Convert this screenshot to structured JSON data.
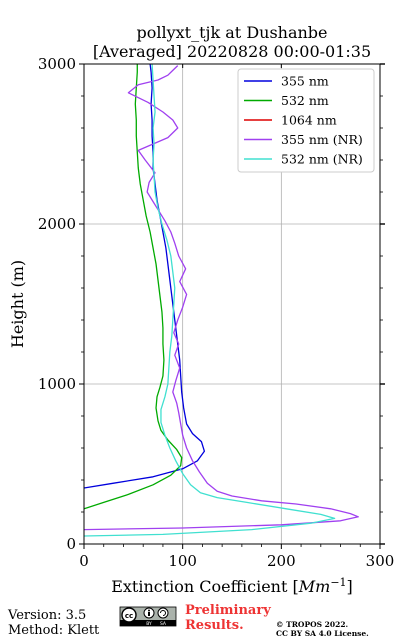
{
  "chart_data": {
    "type": "line",
    "title_lines": [
      "pollyxt_tjk at Dushanbe",
      "[Averaged] 20220828 00:00-01:35"
    ],
    "xlabel": "Extinction Coefficient",
    "xlabel_unit": "Mm",
    "xlabel_unit_exp": "−1",
    "ylabel": "Height (m)",
    "xlim": [
      0,
      300
    ],
    "ylim": [
      0,
      3000
    ],
    "xticks": [
      0,
      100,
      200,
      300
    ],
    "xtick_labels": [
      "0",
      "100",
      "200",
      "300"
    ],
    "yticks": [
      0,
      1000,
      2000,
      3000
    ],
    "ytick_labels": [
      "0",
      "1000",
      "2000",
      "3000"
    ],
    "grid": true,
    "legend_position": "top-right",
    "series": [
      {
        "name": "355 nm",
        "color": "#0000dd",
        "points": [
          [
            0,
            350
          ],
          [
            30,
            380
          ],
          [
            70,
            420
          ],
          [
            100,
            470
          ],
          [
            115,
            520
          ],
          [
            122,
            580
          ],
          [
            119,
            640
          ],
          [
            110,
            690
          ],
          [
            104,
            750
          ],
          [
            101,
            850
          ],
          [
            99,
            950
          ],
          [
            98,
            1050
          ],
          [
            97,
            1150
          ],
          [
            95,
            1250
          ],
          [
            93,
            1350
          ],
          [
            91,
            1450
          ],
          [
            89,
            1550
          ],
          [
            87,
            1650
          ],
          [
            85,
            1750
          ],
          [
            83,
            1850
          ],
          [
            80,
            1950
          ],
          [
            77,
            2050
          ],
          [
            74,
            2150
          ],
          [
            72,
            2250
          ],
          [
            70,
            2350
          ],
          [
            70,
            2450
          ],
          [
            69,
            2550
          ],
          [
            69,
            2650
          ],
          [
            68,
            2750
          ],
          [
            69,
            2850
          ],
          [
            68,
            2950
          ],
          [
            67,
            3000
          ]
        ]
      },
      {
        "name": "532 nm",
        "color": "#00aa00",
        "points": [
          [
            0,
            220
          ],
          [
            20,
            260
          ],
          [
            45,
            310
          ],
          [
            70,
            370
          ],
          [
            88,
            430
          ],
          [
            98,
            490
          ],
          [
            99,
            540
          ],
          [
            94,
            590
          ],
          [
            85,
            650
          ],
          [
            78,
            710
          ],
          [
            75,
            770
          ],
          [
            73,
            850
          ],
          [
            74,
            920
          ],
          [
            77,
            980
          ],
          [
            80,
            1050
          ],
          [
            81,
            1150
          ],
          [
            80,
            1250
          ],
          [
            80,
            1350
          ],
          [
            79,
            1450
          ],
          [
            77,
            1550
          ],
          [
            75,
            1650
          ],
          [
            73,
            1750
          ],
          [
            70,
            1850
          ],
          [
            67,
            1950
          ],
          [
            63,
            2050
          ],
          [
            60,
            2150
          ],
          [
            57,
            2250
          ],
          [
            55,
            2350
          ],
          [
            54,
            2450
          ],
          [
            53,
            2550
          ],
          [
            53,
            2650
          ],
          [
            52,
            2750
          ],
          [
            53,
            2850
          ],
          [
            54,
            2950
          ],
          [
            54,
            3000
          ]
        ]
      },
      {
        "name": "1064 nm",
        "color": "#dd0000",
        "points": []
      },
      {
        "name": "355 nm (NR)",
        "color": "#a040f0",
        "points": [
          [
            0,
            90
          ],
          [
            100,
            100
          ],
          [
            200,
            120
          ],
          [
            260,
            145
          ],
          [
            278,
            170
          ],
          [
            270,
            190
          ],
          [
            250,
            220
          ],
          [
            215,
            250
          ],
          [
            180,
            270
          ],
          [
            150,
            300
          ],
          [
            135,
            330
          ],
          [
            125,
            380
          ],
          [
            117,
            450
          ],
          [
            110,
            520
          ],
          [
            104,
            600
          ],
          [
            100,
            680
          ],
          [
            98,
            750
          ],
          [
            96,
            820
          ],
          [
            94,
            880
          ],
          [
            90,
            950
          ],
          [
            93,
            1020
          ],
          [
            97,
            1100
          ],
          [
            92,
            1180
          ],
          [
            96,
            1250
          ],
          [
            91,
            1320
          ],
          [
            95,
            1400
          ],
          [
            100,
            1480
          ],
          [
            104,
            1560
          ],
          [
            97,
            1640
          ],
          [
            103,
            1720
          ],
          [
            96,
            1800
          ],
          [
            92,
            1880
          ],
          [
            88,
            1950
          ],
          [
            82,
            2020
          ],
          [
            76,
            2080
          ],
          [
            70,
            2140
          ],
          [
            64,
            2200
          ],
          [
            66,
            2260
          ],
          [
            72,
            2320
          ],
          [
            62,
            2400
          ],
          [
            55,
            2460
          ],
          [
            70,
            2500
          ],
          [
            85,
            2540
          ],
          [
            95,
            2600
          ],
          [
            90,
            2650
          ],
          [
            80,
            2700
          ],
          [
            65,
            2760
          ],
          [
            45,
            2820
          ],
          [
            55,
            2870
          ],
          [
            75,
            2900
          ],
          [
            85,
            2930
          ],
          [
            90,
            2960
          ],
          [
            95,
            2990
          ]
        ]
      },
      {
        "name": "532 nm (NR)",
        "color": "#40e0d0",
        "points": [
          [
            0,
            50
          ],
          [
            80,
            60
          ],
          [
            170,
            90
          ],
          [
            230,
            130
          ],
          [
            254,
            160
          ],
          [
            240,
            185
          ],
          [
            205,
            220
          ],
          [
            165,
            260
          ],
          [
            135,
            290
          ],
          [
            118,
            320
          ],
          [
            108,
            370
          ],
          [
            100,
            440
          ],
          [
            93,
            520
          ],
          [
            87,
            600
          ],
          [
            82,
            680
          ],
          [
            78,
            760
          ],
          [
            78,
            840
          ],
          [
            82,
            920
          ],
          [
            85,
            1000
          ],
          [
            86,
            1100
          ],
          [
            87,
            1200
          ],
          [
            89,
            1300
          ],
          [
            90,
            1400
          ],
          [
            91,
            1500
          ],
          [
            92,
            1600
          ],
          [
            90,
            1700
          ],
          [
            88,
            1800
          ],
          [
            84,
            1900
          ],
          [
            79,
            2000
          ],
          [
            75,
            2100
          ],
          [
            72,
            2200
          ],
          [
            71,
            2300
          ],
          [
            70,
            2400
          ],
          [
            71,
            2500
          ],
          [
            70,
            2600
          ],
          [
            72,
            2700
          ],
          [
            71,
            2800
          ],
          [
            70,
            2900
          ],
          [
            69,
            3000
          ]
        ]
      }
    ]
  },
  "footer": {
    "version": "Version: 3.5",
    "method": "Method: Klett",
    "preliminary_line1": "Preliminary",
    "preliminary_line2": "Results.",
    "preliminary_color": "#ee3333",
    "copyright_line1": "© TROPOS 2022.",
    "copyright_line2": "CC BY SA 4.0 License.",
    "license_badge": {
      "icon": "cc-by-sa-badge",
      "text": "BY SA"
    }
  }
}
